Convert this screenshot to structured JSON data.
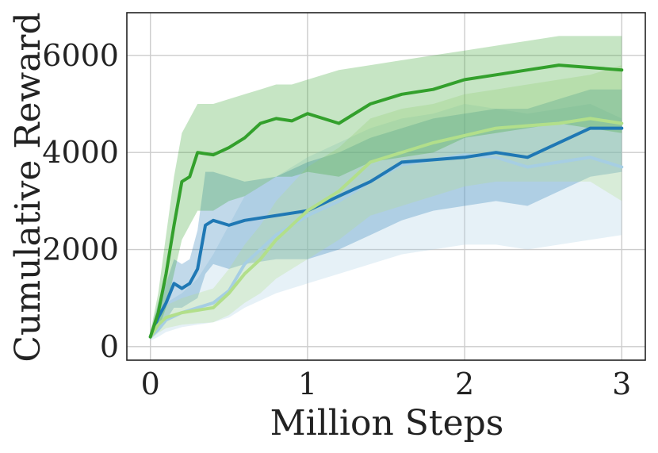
{
  "chart_data": {
    "type": "line",
    "title": "",
    "xlabel": "Million Steps",
    "ylabel": "Cumulative Reward",
    "xlim": [
      -0.15,
      3.15
    ],
    "ylim": [
      -280,
      6880
    ],
    "xticks": [
      0,
      1,
      2,
      3
    ],
    "xtick_labels": [
      "0",
      "1",
      "2",
      "3"
    ],
    "yticks": [
      0,
      2000,
      4000,
      6000
    ],
    "ytick_labels": [
      "0",
      "2000",
      "4000",
      "6000"
    ],
    "grid": true,
    "legend": "none",
    "series": [
      {
        "color": "#a6cee3",
        "x": [
          0,
          0.05,
          0.1,
          0.2,
          0.3,
          0.4,
          0.5,
          0.6,
          0.8,
          1.0,
          1.2,
          1.4,
          1.6,
          1.8,
          2.0,
          2.2,
          2.4,
          2.6,
          2.8,
          3.0
        ],
        "y": [
          200,
          350,
          550,
          700,
          800,
          900,
          1150,
          1700,
          2300,
          2700,
          3000,
          3400,
          3750,
          3850,
          3950,
          3900,
          3700,
          3800,
          3900,
          3700
        ],
        "lower": [
          120,
          200,
          300,
          400,
          450,
          500,
          600,
          800,
          1100,
          1300,
          1500,
          1700,
          1900,
          2000,
          2100,
          2100,
          2000,
          2100,
          2200,
          2300
        ],
        "upper": [
          300,
          550,
          900,
          1100,
          1400,
          1900,
          2500,
          3100,
          3500,
          3900,
          4200,
          4500,
          4700,
          4800,
          5000,
          4900,
          4800,
          4900,
          5000,
          4700
        ]
      },
      {
        "color": "#1f78b4",
        "x": [
          0,
          0.05,
          0.1,
          0.15,
          0.2,
          0.25,
          0.3,
          0.35,
          0.4,
          0.5,
          0.6,
          0.8,
          1.0,
          1.2,
          1.4,
          1.6,
          1.8,
          2.0,
          2.2,
          2.4,
          2.6,
          2.8,
          3.0
        ],
        "y": [
          200,
          600,
          900,
          1300,
          1200,
          1300,
          1600,
          2500,
          2600,
          2500,
          2600,
          2700,
          2800,
          3100,
          3400,
          3800,
          3850,
          3900,
          4000,
          3900,
          4200,
          4500,
          4500
        ],
        "lower": [
          150,
          350,
          550,
          800,
          800,
          900,
          1000,
          1500,
          1700,
          1600,
          1700,
          1800,
          1800,
          2000,
          2300,
          2600,
          2800,
          2900,
          3000,
          2900,
          3200,
          3500,
          3600
        ],
        "upper": [
          280,
          900,
          1300,
          1800,
          1700,
          1800,
          2400,
          3600,
          3600,
          3500,
          3400,
          3500,
          3800,
          4000,
          4300,
          4500,
          4700,
          4800,
          4900,
          4900,
          5100,
          5300,
          5300
        ]
      },
      {
        "color": "#b2df8a",
        "x": [
          0,
          0.05,
          0.1,
          0.2,
          0.3,
          0.4,
          0.5,
          0.6,
          0.7,
          0.8,
          1.0,
          1.2,
          1.4,
          1.6,
          1.8,
          2.0,
          2.2,
          2.4,
          2.6,
          2.8,
          3.0
        ],
        "y": [
          200,
          450,
          600,
          700,
          750,
          800,
          1100,
          1500,
          1800,
          2200,
          2800,
          3200,
          3800,
          4000,
          4200,
          4350,
          4500,
          4550,
          4600,
          4700,
          4600
        ],
        "lower": [
          150,
          280,
          380,
          450,
          480,
          500,
          650,
          900,
          1100,
          1400,
          1800,
          2200,
          2700,
          2900,
          3100,
          3300,
          3400,
          3400,
          3400,
          3400,
          3000
        ],
        "upper": [
          280,
          650,
          850,
          1000,
          1100,
          1200,
          1600,
          2100,
          2500,
          3000,
          3700,
          4100,
          4700,
          4900,
          5000,
          5200,
          5300,
          5400,
          5500,
          5600,
          5800
        ]
      },
      {
        "color": "#33a02c",
        "x": [
          0,
          0.05,
          0.1,
          0.15,
          0.2,
          0.25,
          0.3,
          0.4,
          0.5,
          0.6,
          0.7,
          0.8,
          0.9,
          1.0,
          1.2,
          1.4,
          1.6,
          1.8,
          2.0,
          2.2,
          2.4,
          2.6,
          2.8,
          3.0
        ],
        "y": [
          200,
          700,
          1500,
          2500,
          3400,
          3500,
          4000,
          3950,
          4100,
          4300,
          4600,
          4700,
          4650,
          4800,
          4600,
          5000,
          5200,
          5300,
          5500,
          5600,
          5700,
          5800,
          5750,
          5700
        ],
        "lower": [
          150,
          350,
          800,
          1500,
          2200,
          2500,
          2800,
          2800,
          3000,
          3100,
          3300,
          3500,
          3500,
          3600,
          3500,
          3800,
          3900,
          4000,
          4300,
          4400,
          4500,
          4600,
          4500,
          4400
        ],
        "upper": [
          300,
          1100,
          2300,
          3500,
          4400,
          4700,
          5000,
          5000,
          5100,
          5200,
          5300,
          5400,
          5400,
          5500,
          5700,
          5800,
          5900,
          6000,
          6100,
          6200,
          6300,
          6400,
          6400,
          6400
        ]
      }
    ]
  }
}
